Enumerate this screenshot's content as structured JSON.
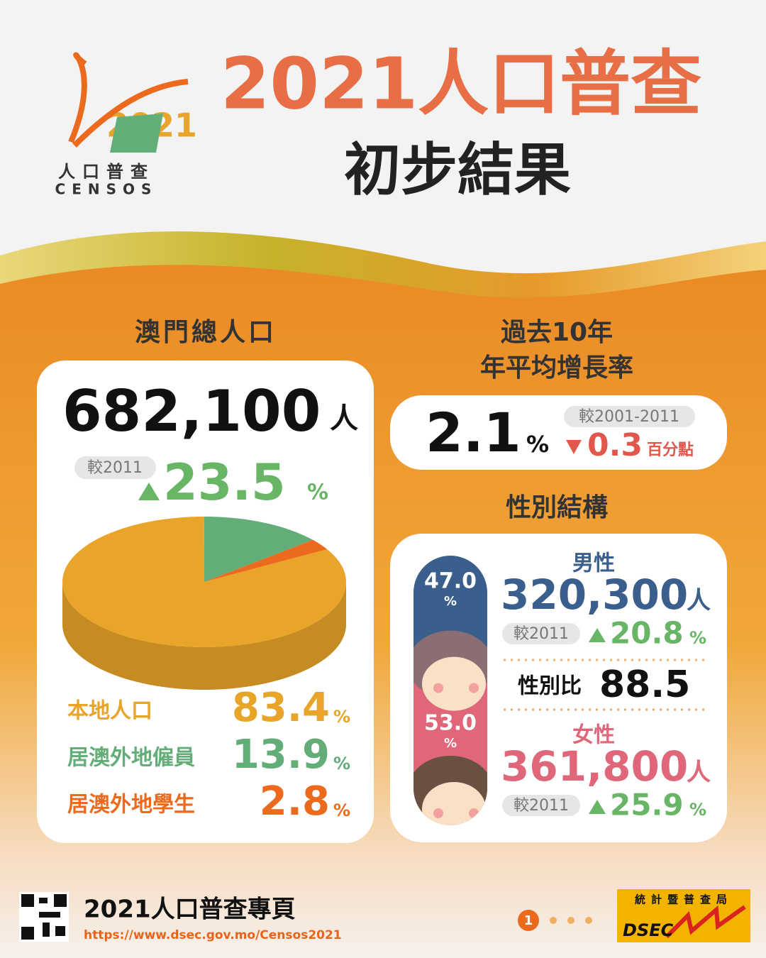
{
  "logo": {
    "year": "2021",
    "name": "人口普查",
    "latin": "CENSOS"
  },
  "header": {
    "title": "2021人口普查",
    "subtitle": "初步結果"
  },
  "population": {
    "heading": "澳門總人口",
    "total": "682,100",
    "unit": "人",
    "compare_label": "較2011",
    "change": "23.5",
    "change_unit": "%",
    "composition": {
      "type": "pie",
      "unit": "%",
      "series": [
        {
          "name": "本地人口",
          "value": 83.4,
          "color": "#e9a42a"
        },
        {
          "name": "居澳外地僱員",
          "value": 13.9,
          "color": "#63ad78"
        },
        {
          "name": "居澳外地學生",
          "value": 2.8,
          "color": "#ec6a1e"
        }
      ]
    }
  },
  "growth": {
    "heading_line1": "過去10年",
    "heading_line2": "年平均增長率",
    "value": "2.1",
    "unit": "%",
    "compare_label": "較2001-2011",
    "change": "0.3",
    "change_unit": "百分點"
  },
  "gender": {
    "heading": "性別結構",
    "male": {
      "label": "男性",
      "share": 47.0,
      "share_label": "47.0",
      "share_unit": "%",
      "count": "320,300",
      "unit": "人",
      "compare_label": "較2011",
      "change": "20.8",
      "change_unit": "%",
      "color": "#3a5f8c"
    },
    "female": {
      "label": "女性",
      "share": 53.0,
      "share_label": "53.0",
      "share_unit": "%",
      "count": "361,800",
      "unit": "人",
      "compare_label": "較2011",
      "change": "25.9",
      "change_unit": "%",
      "color": "#e0677a"
    },
    "ratio_label": "性別比",
    "ratio": "88.5"
  },
  "footer": {
    "title": "2021人口普查專頁",
    "url": "https://www.dsec.gov.mo/Censos2021",
    "page": "1",
    "agency_cn": "統計暨普查局",
    "agency": "DSEC"
  }
}
